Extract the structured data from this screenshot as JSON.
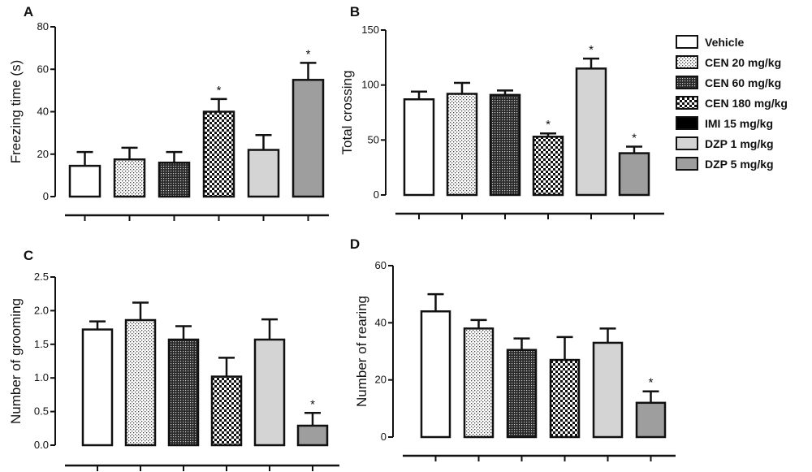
{
  "legend": {
    "title": "",
    "entries": [
      {
        "label": "Vehicle",
        "pattern": "white"
      },
      {
        "label": "CEN 20 mg/kg",
        "pattern": "dots"
      },
      {
        "label": "CEN 60 mg/kg",
        "pattern": "dense"
      },
      {
        "label": "CEN 180 mg/kg",
        "pattern": "checker"
      },
      {
        "label": "IMI 15 mg/kg",
        "pattern": "black"
      },
      {
        "label": "DZP 1 mg/kg",
        "pattern": "light"
      },
      {
        "label": "DZP 5 mg/kg",
        "pattern": "dark"
      }
    ]
  },
  "colors": {
    "light_gray": "#d4d4d4",
    "dark_gray": "#9e9e9e",
    "black": "#000000"
  },
  "chart_data": [
    {
      "panel": "A",
      "type": "bar",
      "ylabel": "Freezing time (s)",
      "ylim": [
        0,
        80
      ],
      "yticks": [
        0,
        20,
        40,
        60,
        80
      ],
      "series": [
        {
          "group": "Vehicle",
          "value": 14.5,
          "sem": 6.5,
          "sig": false
        },
        {
          "group": "CEN 20 mg/kg",
          "value": 17.5,
          "sem": 5.5,
          "sig": false
        },
        {
          "group": "CEN 60 mg/kg",
          "value": 16,
          "sem": 5,
          "sig": false
        },
        {
          "group": "CEN 180 mg/kg",
          "value": 40,
          "sem": 6,
          "sig": true
        },
        {
          "group": "DZP 1 mg/kg",
          "value": 22,
          "sem": 7,
          "sig": false
        },
        {
          "group": "DZP 5 mg/kg",
          "value": 55,
          "sem": 8,
          "sig": true
        }
      ],
      "sig_label": "*"
    },
    {
      "panel": "B",
      "type": "bar",
      "ylabel": "Total crossing",
      "ylim": [
        0,
        150
      ],
      "yticks": [
        0,
        50,
        100,
        150
      ],
      "series": [
        {
          "group": "Vehicle",
          "value": 87,
          "sem": 7,
          "sig": false
        },
        {
          "group": "CEN 20 mg/kg",
          "value": 92,
          "sem": 10,
          "sig": false
        },
        {
          "group": "CEN 60 mg/kg",
          "value": 91,
          "sem": 4,
          "sig": false
        },
        {
          "group": "CEN 180 mg/kg",
          "value": 53,
          "sem": 3,
          "sig": true
        },
        {
          "group": "DZP 1 mg/kg",
          "value": 115,
          "sem": 9,
          "sig": true
        },
        {
          "group": "DZP 5 mg/kg",
          "value": 38,
          "sem": 6,
          "sig": true
        }
      ],
      "sig_label": "*"
    },
    {
      "panel": "C",
      "type": "bar",
      "ylabel": "Number of grooming",
      "ylim": [
        0,
        2.5
      ],
      "yticks": [
        "0.0",
        "0.5",
        "1.0",
        "1.5",
        "2.0",
        "2.5"
      ],
      "series": [
        {
          "group": "Vehicle",
          "value": 1.72,
          "sem": 0.12,
          "sig": false
        },
        {
          "group": "CEN 20 mg/kg",
          "value": 1.86,
          "sem": 0.26,
          "sig": false
        },
        {
          "group": "CEN 60 mg/kg",
          "value": 1.57,
          "sem": 0.2,
          "sig": false
        },
        {
          "group": "CEN 180 mg/kg",
          "value": 1.02,
          "sem": 0.28,
          "sig": false
        },
        {
          "group": "DZP 1 mg/kg",
          "value": 1.57,
          "sem": 0.3,
          "sig": false
        },
        {
          "group": "DZP 5 mg/kg",
          "value": 0.29,
          "sem": 0.19,
          "sig": true
        }
      ],
      "sig_label": "*"
    },
    {
      "panel": "D",
      "type": "bar",
      "ylabel": "Number of rearing",
      "ylim": [
        0,
        60
      ],
      "yticks": [
        0,
        20,
        40,
        60
      ],
      "series": [
        {
          "group": "Vehicle",
          "value": 44,
          "sem": 6,
          "sig": false
        },
        {
          "group": "CEN 20 mg/kg",
          "value": 38,
          "sem": 3,
          "sig": false
        },
        {
          "group": "CEN 60 mg/kg",
          "value": 30.5,
          "sem": 4,
          "sig": false
        },
        {
          "group": "CEN 180 mg/kg",
          "value": 27,
          "sem": 8,
          "sig": false
        },
        {
          "group": "DZP 1 mg/kg",
          "value": 33,
          "sem": 5,
          "sig": false
        },
        {
          "group": "DZP 5 mg/kg",
          "value": 12,
          "sem": 4,
          "sig": true
        }
      ],
      "sig_label": "*"
    }
  ]
}
